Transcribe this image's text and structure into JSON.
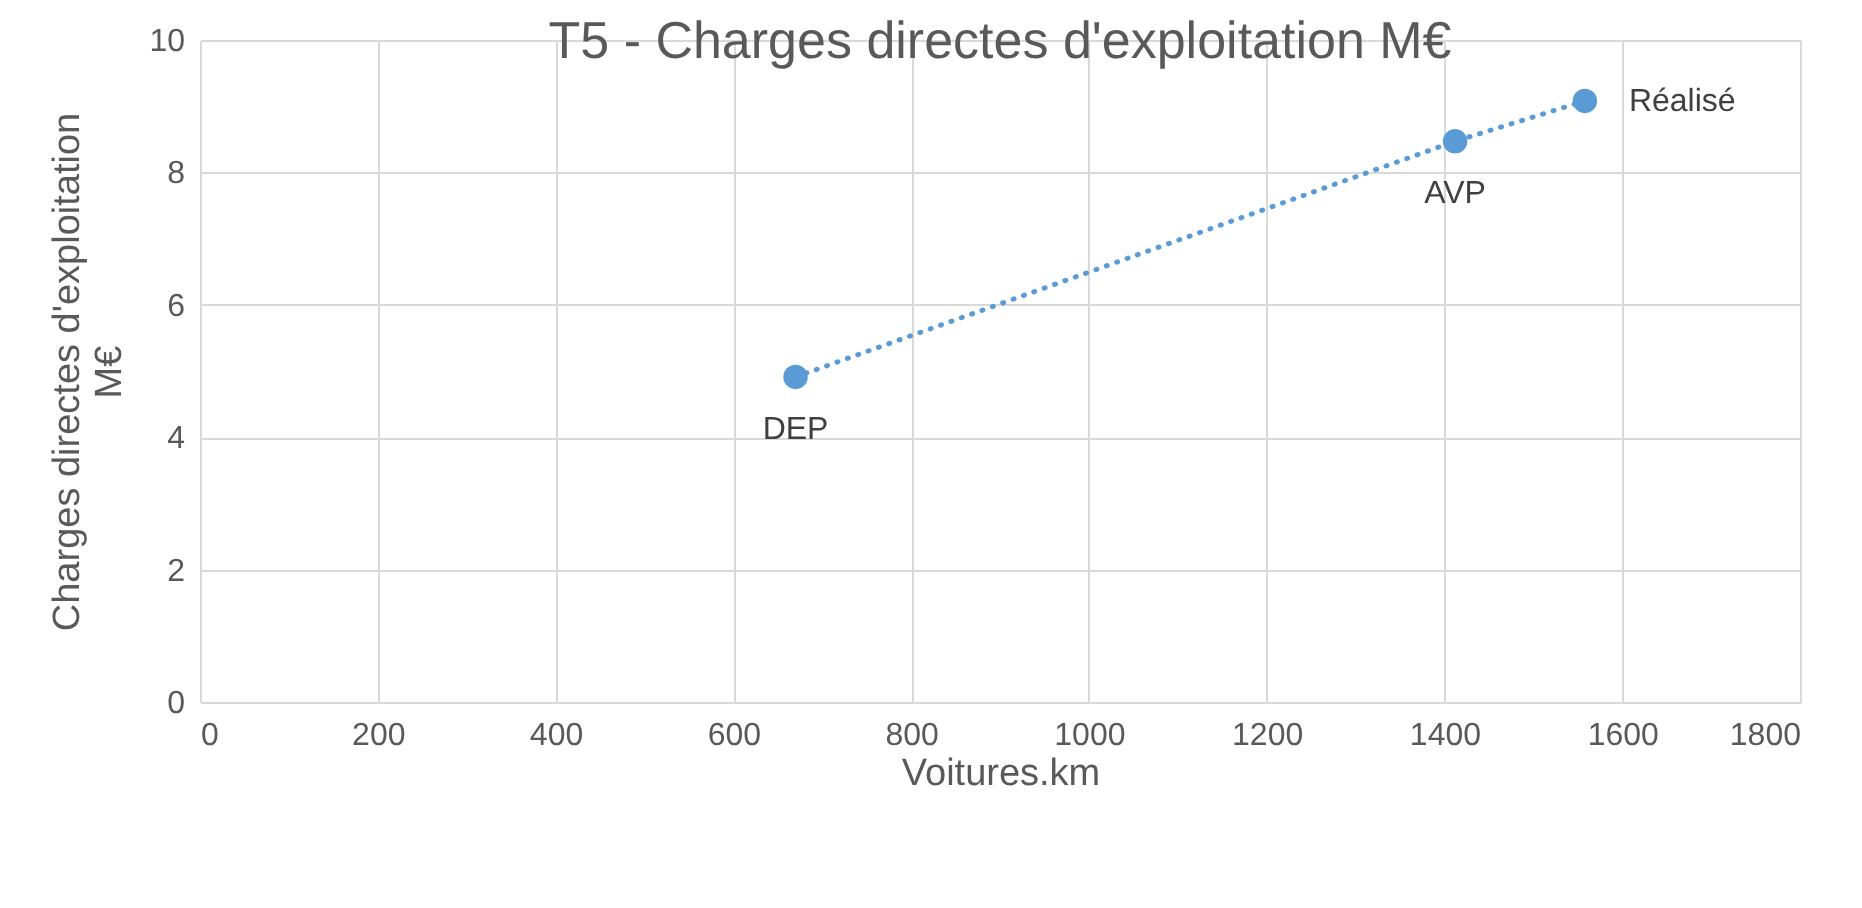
{
  "chart_data": {
    "type": "line",
    "title": "T5 - Charges directes d'exploitation M€",
    "xlabel": "Voitures.km",
    "ylabel": "Charges directes d'exploitation M€",
    "x": [
      670,
      1412,
      1558
    ],
    "series": [
      {
        "color": "#5b9bd5",
        "values": [
          4.91,
          8.47,
          9.08
        ]
      }
    ],
    "xlim": [
      0,
      1800
    ],
    "xticks": [
      0,
      200,
      400,
      600,
      800,
      1000,
      1200,
      1400,
      1600,
      1800
    ],
    "ylim": [
      0,
      10
    ],
    "yticks": [
      0,
      2,
      4,
      6,
      8,
      10
    ],
    "grid": true,
    "marker": "circle",
    "line_style": "dotted",
    "annotations": [
      {
        "text": "DEP",
        "x": 670,
        "y": 4.91
      },
      {
        "text": "AVP",
        "x": 1412,
        "y": 8.47
      },
      {
        "text": "Réalisé",
        "x": 1558,
        "y": 9.08
      }
    ]
  }
}
